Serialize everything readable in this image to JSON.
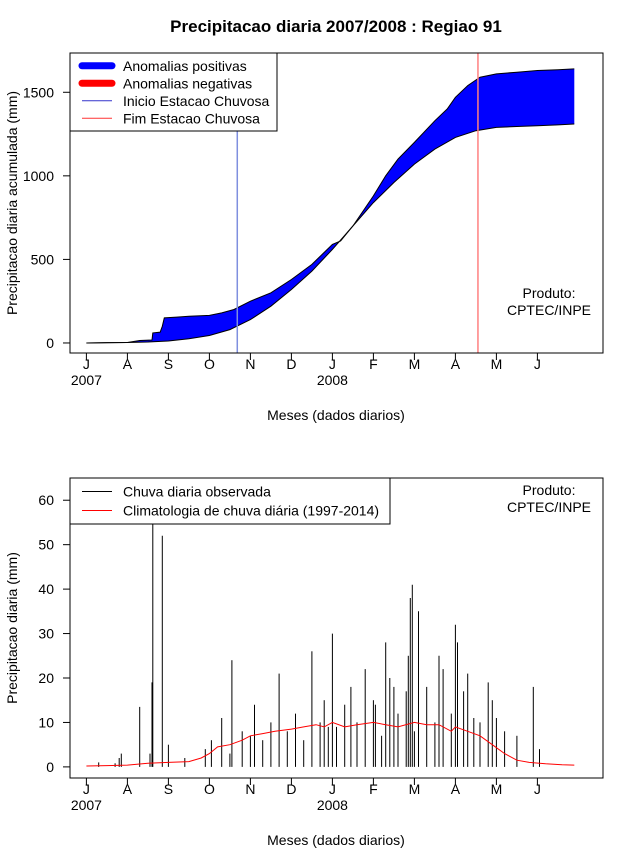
{
  "chart_data": [
    {
      "type": "area",
      "title": "Precipitacao diaria 2007/2008 : Regiao 91",
      "xlabel": "Meses (dados diarios)",
      "ylabel": "Precipitacao diaria acumulada (mm)",
      "x_ticks": [
        "J",
        "A",
        "S",
        "O",
        "N",
        "D",
        "J",
        "F",
        "M",
        "A",
        "M",
        "J"
      ],
      "year_labels": [
        {
          "label": "2007",
          "month_index": 0
        },
        {
          "label": "2008",
          "month_index": 6
        }
      ],
      "xlim_months": [
        -0.4,
        12.6
      ],
      "ylim": [
        -60,
        1735
      ],
      "y_ticks": [
        0,
        500,
        1000,
        1500
      ],
      "legend": [
        {
          "label": "Anomalias positivas",
          "color": "#0000ff",
          "style": "thick"
        },
        {
          "label": "Anomalias negativas",
          "color": "#ff0000",
          "style": "thick"
        },
        {
          "label": "Inicio Estacao Chuvosa",
          "color": "#3333cc",
          "style": "thin"
        },
        {
          "label": "Fim Estacao Chuvosa",
          "color": "#ff3333",
          "style": "thin"
        }
      ],
      "rainy_season_start_month": 3.68,
      "rainy_season_end_month": 9.55,
      "start_line_color": "#7f8fdf",
      "end_line_color": "#ff8080",
      "fill_color": "#0000ff",
      "product_label": [
        "Produto:",
        "CPTEC/INPE"
      ],
      "series": [
        {
          "name": "Observada acumulada",
          "points": [
            [
              0,
              0
            ],
            [
              0.5,
              2
            ],
            [
              1.0,
              3
            ],
            [
              1.3,
              15
            ],
            [
              1.6,
              18
            ],
            [
              1.62,
              60
            ],
            [
              1.8,
              65
            ],
            [
              1.85,
              100
            ],
            [
              1.9,
              150
            ],
            [
              2.2,
              155
            ],
            [
              2.5,
              160
            ],
            [
              3.0,
              165
            ],
            [
              3.3,
              180
            ],
            [
              3.6,
              200
            ],
            [
              4.0,
              250
            ],
            [
              4.5,
              300
            ],
            [
              5.0,
              380
            ],
            [
              5.5,
              470
            ],
            [
              6.0,
              590
            ],
            [
              6.2,
              610
            ],
            [
              6.5,
              700
            ],
            [
              7.0,
              880
            ],
            [
              7.3,
              1000
            ],
            [
              7.6,
              1100
            ],
            [
              8.0,
              1200
            ],
            [
              8.5,
              1330
            ],
            [
              8.8,
              1400
            ],
            [
              9.0,
              1470
            ],
            [
              9.3,
              1540
            ],
            [
              9.6,
              1590
            ],
            [
              10.0,
              1610
            ],
            [
              10.5,
              1620
            ],
            [
              11.0,
              1630
            ],
            [
              11.5,
              1635
            ],
            [
              11.9,
              1640
            ]
          ]
        },
        {
          "name": "Climatologia acumulada",
          "points": [
            [
              0,
              0
            ],
            [
              0.5,
              1
            ],
            [
              1.0,
              3
            ],
            [
              1.5,
              6
            ],
            [
              2.0,
              12
            ],
            [
              2.5,
              25
            ],
            [
              3.0,
              45
            ],
            [
              3.5,
              80
            ],
            [
              4.0,
              140
            ],
            [
              4.5,
              220
            ],
            [
              5.0,
              320
            ],
            [
              5.5,
              430
            ],
            [
              6.0,
              560
            ],
            [
              6.5,
              700
            ],
            [
              7.0,
              840
            ],
            [
              7.5,
              960
            ],
            [
              8.0,
              1070
            ],
            [
              8.5,
              1160
            ],
            [
              9.0,
              1230
            ],
            [
              9.5,
              1270
            ],
            [
              10.0,
              1290
            ],
            [
              10.5,
              1295
            ],
            [
              11.0,
              1300
            ],
            [
              11.5,
              1305
            ],
            [
              11.9,
              1310
            ]
          ]
        }
      ]
    },
    {
      "type": "line",
      "xlabel": "Meses (dados diarios)",
      "ylabel": "Precipitacao diaria (mm)",
      "x_ticks": [
        "J",
        "A",
        "S",
        "O",
        "N",
        "D",
        "J",
        "F",
        "M",
        "A",
        "M",
        "J"
      ],
      "year_labels": [
        {
          "label": "2007",
          "month_index": 0
        },
        {
          "label": "2008",
          "month_index": 6
        }
      ],
      "xlim_months": [
        -0.4,
        12.6
      ],
      "ylim": [
        -2.5,
        65
      ],
      "y_ticks": [
        0,
        10,
        20,
        30,
        40,
        50,
        60
      ],
      "legend": [
        {
          "label": "Chuva diaria observada",
          "color": "#000000"
        },
        {
          "label": "Climatologia de chuva diária (1997-2014)",
          "color": "#ff0000"
        }
      ],
      "product_label": [
        "Produto:",
        "CPTEC/INPE"
      ],
      "series": [
        {
          "name": "Chuva diaria observada",
          "style": "spikes",
          "color": "#000000",
          "points": [
            [
              0.3,
              1
            ],
            [
              0.7,
              0.8
            ],
            [
              0.8,
              2
            ],
            [
              0.85,
              3
            ],
            [
              1.3,
              13.5
            ],
            [
              1.55,
              3
            ],
            [
              1.6,
              19
            ],
            [
              1.62,
              55
            ],
            [
              1.85,
              52
            ],
            [
              2.0,
              5
            ],
            [
              2.4,
              2
            ],
            [
              2.9,
              4
            ],
            [
              3.05,
              6
            ],
            [
              3.3,
              11
            ],
            [
              3.5,
              3
            ],
            [
              3.55,
              24
            ],
            [
              3.8,
              8
            ],
            [
              4.0,
              7
            ],
            [
              4.1,
              14
            ],
            [
              4.3,
              6
            ],
            [
              4.5,
              10
            ],
            [
              4.7,
              21
            ],
            [
              4.9,
              8
            ],
            [
              5.1,
              12
            ],
            [
              5.3,
              6
            ],
            [
              5.5,
              26
            ],
            [
              5.7,
              10
            ],
            [
              5.8,
              15
            ],
            [
              5.9,
              9
            ],
            [
              6.0,
              30
            ],
            [
              6.1,
              9
            ],
            [
              6.3,
              14
            ],
            [
              6.45,
              18
            ],
            [
              6.6,
              10
            ],
            [
              6.8,
              22
            ],
            [
              7.0,
              15
            ],
            [
              7.05,
              14
            ],
            [
              7.2,
              7
            ],
            [
              7.3,
              28
            ],
            [
              7.4,
              20
            ],
            [
              7.5,
              18
            ],
            [
              7.6,
              12
            ],
            [
              7.8,
              17
            ],
            [
              7.85,
              25
            ],
            [
              7.9,
              38
            ],
            [
              7.95,
              41
            ],
            [
              8.0,
              8
            ],
            [
              8.1,
              35
            ],
            [
              8.3,
              18
            ],
            [
              8.5,
              10
            ],
            [
              8.6,
              25
            ],
            [
              8.7,
              22
            ],
            [
              8.9,
              12
            ],
            [
              9.0,
              32
            ],
            [
              9.05,
              28
            ],
            [
              9.2,
              17
            ],
            [
              9.3,
              21
            ],
            [
              9.45,
              11
            ],
            [
              9.6,
              10
            ],
            [
              9.8,
              19
            ],
            [
              9.9,
              15
            ],
            [
              10.0,
              11
            ],
            [
              10.2,
              8
            ],
            [
              10.5,
              7
            ],
            [
              10.9,
              18
            ],
            [
              11.05,
              4
            ]
          ]
        },
        {
          "name": "Climatologia de chuva diária (1997-2014)",
          "style": "line",
          "color": "#ff0000",
          "points": [
            [
              0,
              0.2
            ],
            [
              0.5,
              0.3
            ],
            [
              1.0,
              0.4
            ],
            [
              1.5,
              0.8
            ],
            [
              2.0,
              1.0
            ],
            [
              2.5,
              1.2
            ],
            [
              2.8,
              2.0
            ],
            [
              3.0,
              3.0
            ],
            [
              3.2,
              4.5
            ],
            [
              3.5,
              5.0
            ],
            [
              3.8,
              6.0
            ],
            [
              4.0,
              7.0
            ],
            [
              4.3,
              7.5
            ],
            [
              4.6,
              8.0
            ],
            [
              5.0,
              8.5
            ],
            [
              5.3,
              9.0
            ],
            [
              5.6,
              9.5
            ],
            [
              5.8,
              9.0
            ],
            [
              6.0,
              10.0
            ],
            [
              6.3,
              9.0
            ],
            [
              6.6,
              9.5
            ],
            [
              7.0,
              10.0
            ],
            [
              7.3,
              9.5
            ],
            [
              7.6,
              9.0
            ],
            [
              8.0,
              10.0
            ],
            [
              8.3,
              9.5
            ],
            [
              8.6,
              9.5
            ],
            [
              8.9,
              8.0
            ],
            [
              9.0,
              9.0
            ],
            [
              9.3,
              8.0
            ],
            [
              9.6,
              7.0
            ],
            [
              9.9,
              5.0
            ],
            [
              10.2,
              3.0
            ],
            [
              10.5,
              1.5
            ],
            [
              10.8,
              1.0
            ],
            [
              11.2,
              0.7
            ],
            [
              11.6,
              0.5
            ],
            [
              11.9,
              0.4
            ]
          ]
        }
      ]
    }
  ]
}
